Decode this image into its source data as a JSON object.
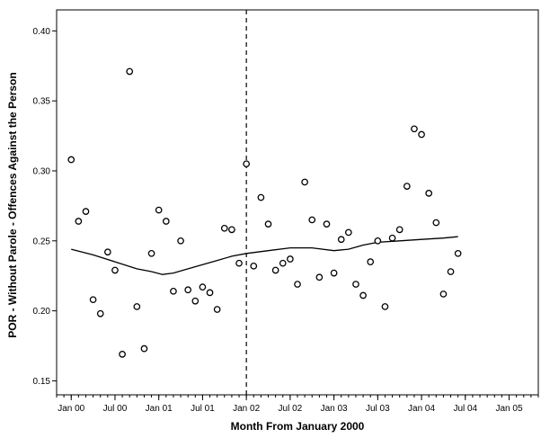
{
  "chart_data": {
    "type": "scatter",
    "xlabel": "Month From January 2000",
    "ylabel": "POR - Without Parole - Offences Against the Person",
    "xlim": [
      -2,
      64
    ],
    "ylim": [
      0.14,
      0.415
    ],
    "x_ticks": [
      {
        "value": 0,
        "label": "Jan 00"
      },
      {
        "value": 6,
        "label": "Jul 00"
      },
      {
        "value": 12,
        "label": "Jan 01"
      },
      {
        "value": 18,
        "label": "Jul 01"
      },
      {
        "value": 24,
        "label": "Jan 02"
      },
      {
        "value": 30,
        "label": "Jul 02"
      },
      {
        "value": 36,
        "label": "Jan 03"
      },
      {
        "value": 42,
        "label": "Jul 03"
      },
      {
        "value": 48,
        "label": "Jan 04"
      },
      {
        "value": 54,
        "label": "Jul 04"
      },
      {
        "value": 60,
        "label": "Jan 05"
      }
    ],
    "y_ticks": [
      {
        "value": 0.15,
        "label": "0.15"
      },
      {
        "value": 0.2,
        "label": "0.20"
      },
      {
        "value": 0.25,
        "label": "0.25"
      },
      {
        "value": 0.3,
        "label": "0.30"
      },
      {
        "value": 0.35,
        "label": "0.35"
      },
      {
        "value": 0.4,
        "label": "0.40"
      }
    ],
    "reference_line_x": 24,
    "points": [
      {
        "x": 0,
        "y": 0.308
      },
      {
        "x": 1,
        "y": 0.264
      },
      {
        "x": 2,
        "y": 0.271
      },
      {
        "x": 3,
        "y": 0.208
      },
      {
        "x": 4,
        "y": 0.198
      },
      {
        "x": 5,
        "y": 0.242
      },
      {
        "x": 6,
        "y": 0.229
      },
      {
        "x": 7,
        "y": 0.169
      },
      {
        "x": 8,
        "y": 0.371
      },
      {
        "x": 9,
        "y": 0.203
      },
      {
        "x": 10,
        "y": 0.173
      },
      {
        "x": 11,
        "y": 0.241
      },
      {
        "x": 12,
        "y": 0.272
      },
      {
        "x": 13,
        "y": 0.264
      },
      {
        "x": 14,
        "y": 0.214
      },
      {
        "x": 15,
        "y": 0.25
      },
      {
        "x": 16,
        "y": 0.215
      },
      {
        "x": 17,
        "y": 0.207
      },
      {
        "x": 18,
        "y": 0.217
      },
      {
        "x": 19,
        "y": 0.213
      },
      {
        "x": 20,
        "y": 0.201
      },
      {
        "x": 21,
        "y": 0.259
      },
      {
        "x": 22,
        "y": 0.258
      },
      {
        "x": 23,
        "y": 0.234
      },
      {
        "x": 24,
        "y": 0.305
      },
      {
        "x": 25,
        "y": 0.232
      },
      {
        "x": 26,
        "y": 0.281
      },
      {
        "x": 27,
        "y": 0.262
      },
      {
        "x": 28,
        "y": 0.229
      },
      {
        "x": 29,
        "y": 0.234
      },
      {
        "x": 30,
        "y": 0.237
      },
      {
        "x": 31,
        "y": 0.219
      },
      {
        "x": 32,
        "y": 0.292
      },
      {
        "x": 33,
        "y": 0.265
      },
      {
        "x": 34,
        "y": 0.224
      },
      {
        "x": 35,
        "y": 0.262
      },
      {
        "x": 36,
        "y": 0.227
      },
      {
        "x": 37,
        "y": 0.251
      },
      {
        "x": 38,
        "y": 0.256
      },
      {
        "x": 39,
        "y": 0.219
      },
      {
        "x": 40,
        "y": 0.211
      },
      {
        "x": 41,
        "y": 0.235
      },
      {
        "x": 42,
        "y": 0.25
      },
      {
        "x": 43,
        "y": 0.203
      },
      {
        "x": 44,
        "y": 0.252
      },
      {
        "x": 45,
        "y": 0.258
      },
      {
        "x": 46,
        "y": 0.289
      },
      {
        "x": 47,
        "y": 0.33
      },
      {
        "x": 48,
        "y": 0.326
      },
      {
        "x": 49,
        "y": 0.284
      },
      {
        "x": 50,
        "y": 0.263
      },
      {
        "x": 51,
        "y": 0.212
      },
      {
        "x": 52,
        "y": 0.228
      },
      {
        "x": 53,
        "y": 0.241
      }
    ],
    "trend_line": [
      {
        "x": 0,
        "y": 0.244
      },
      {
        "x": 3,
        "y": 0.24
      },
      {
        "x": 6,
        "y": 0.235
      },
      {
        "x": 9,
        "y": 0.23
      },
      {
        "x": 11,
        "y": 0.228
      },
      {
        "x": 12.5,
        "y": 0.226
      },
      {
        "x": 14,
        "y": 0.227
      },
      {
        "x": 16,
        "y": 0.23
      },
      {
        "x": 18,
        "y": 0.233
      },
      {
        "x": 20,
        "y": 0.236
      },
      {
        "x": 22,
        "y": 0.239
      },
      {
        "x": 24,
        "y": 0.241
      },
      {
        "x": 27,
        "y": 0.243
      },
      {
        "x": 30,
        "y": 0.245
      },
      {
        "x": 33,
        "y": 0.245
      },
      {
        "x": 36,
        "y": 0.243
      },
      {
        "x": 38,
        "y": 0.244
      },
      {
        "x": 40,
        "y": 0.247
      },
      {
        "x": 42,
        "y": 0.249
      },
      {
        "x": 45,
        "y": 0.25
      },
      {
        "x": 48,
        "y": 0.251
      },
      {
        "x": 51,
        "y": 0.252
      },
      {
        "x": 53,
        "y": 0.253
      }
    ],
    "grid": false,
    "colors": {
      "marker": "#000000",
      "line": "#000000",
      "background": "#ffffff"
    }
  }
}
